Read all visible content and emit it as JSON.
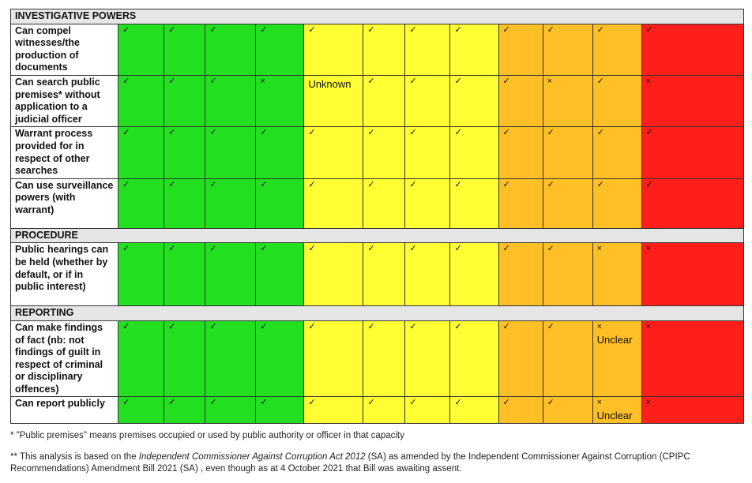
{
  "sections": [
    {
      "title": "INVESTIGATIVE POWERS",
      "rows": [
        {
          "label": "Can compel witnesses/the production of documents",
          "cells": [
            {
              "mark": "✓"
            },
            {
              "mark": "✓"
            },
            {
              "mark": "✓"
            },
            {
              "mark": "✓"
            },
            {
              "mark": "✓"
            },
            {
              "mark": "✓"
            },
            {
              "mark": "✓"
            },
            {
              "mark": "✓"
            },
            {
              "mark": "✓"
            },
            {
              "mark": "✓"
            },
            {
              "mark": "✓"
            },
            {
              "mark": "✓"
            }
          ]
        },
        {
          "label": "Can search public premises* without application to a judicial officer",
          "cells": [
            {
              "mark": "✓"
            },
            {
              "mark": "✓"
            },
            {
              "mark": "✓"
            },
            {
              "mark": "×"
            },
            {
              "mark": "",
              "note": "Unknown"
            },
            {
              "mark": "✓"
            },
            {
              "mark": "✓"
            },
            {
              "mark": "✓"
            },
            {
              "mark": "✓"
            },
            {
              "mark": "×"
            },
            {
              "mark": "✓"
            },
            {
              "mark": "×"
            }
          ]
        },
        {
          "label": "Warrant process provided for in respect of other searches",
          "cells": [
            {
              "mark": "✓"
            },
            {
              "mark": "✓"
            },
            {
              "mark": "✓"
            },
            {
              "mark": "✓"
            },
            {
              "mark": "✓"
            },
            {
              "mark": "✓"
            },
            {
              "mark": "✓"
            },
            {
              "mark": "✓"
            },
            {
              "mark": "✓"
            },
            {
              "mark": "✓"
            },
            {
              "mark": "✓"
            },
            {
              "mark": "✓"
            }
          ]
        },
        {
          "label": "Can use surveillance powers (with warrant)",
          "cells": [
            {
              "mark": "✓"
            },
            {
              "mark": "✓"
            },
            {
              "mark": "✓"
            },
            {
              "mark": "✓"
            },
            {
              "mark": "✓"
            },
            {
              "mark": "✓"
            },
            {
              "mark": "✓"
            },
            {
              "mark": "✓"
            },
            {
              "mark": "✓"
            },
            {
              "mark": "✓"
            },
            {
              "mark": "✓"
            },
            {
              "mark": "✓"
            }
          ]
        }
      ]
    },
    {
      "title": "PROCEDURE",
      "rows": [
        {
          "label": "Public hearings can be held (whether by default, or if in public interest)",
          "cells": [
            {
              "mark": "✓"
            },
            {
              "mark": "✓"
            },
            {
              "mark": "✓"
            },
            {
              "mark": "✓"
            },
            {
              "mark": "✓"
            },
            {
              "mark": "✓"
            },
            {
              "mark": "✓"
            },
            {
              "mark": "✓"
            },
            {
              "mark": "✓"
            },
            {
              "mark": "✓"
            },
            {
              "mark": "×"
            },
            {
              "mark": "×"
            }
          ]
        }
      ]
    },
    {
      "title": "REPORTING",
      "rows": [
        {
          "label": "Can make findings of fact (nb: not findings of guilt in respect of criminal or disciplinary offences)",
          "cells": [
            {
              "mark": "✓"
            },
            {
              "mark": "✓"
            },
            {
              "mark": "✓"
            },
            {
              "mark": "✓"
            },
            {
              "mark": "✓"
            },
            {
              "mark": "✓"
            },
            {
              "mark": "✓"
            },
            {
              "mark": "✓"
            },
            {
              "mark": "✓"
            },
            {
              "mark": "✓"
            },
            {
              "mark": "×",
              "note": "Unclear"
            },
            {
              "mark": "×"
            }
          ]
        },
        {
          "label": "Can report publicly",
          "cells": [
            {
              "mark": "✓"
            },
            {
              "mark": "✓"
            },
            {
              "mark": "✓"
            },
            {
              "mark": "✓"
            },
            {
              "mark": "✓"
            },
            {
              "mark": "✓"
            },
            {
              "mark": "✓"
            },
            {
              "mark": "✓"
            },
            {
              "mark": "✓"
            },
            {
              "mark": "✓"
            },
            {
              "mark": "×",
              "note": "Unclear"
            },
            {
              "mark": "×"
            }
          ]
        }
      ]
    }
  ],
  "column_colors": [
    "#22e020",
    "#22e020",
    "#22e020",
    "#22e020",
    "#ffff33",
    "#ffff33",
    "#ffff33",
    "#ffff33",
    "#ffc027",
    "#ffc027",
    "#ffc027",
    "#ff1f1a"
  ],
  "footnotes": {
    "fn1": "* \"Public premises\" means premises occupied or used by public authority or officer in that capacity",
    "fn2_pre": "** This analysis is based on the ",
    "fn2_act": "Independent Commissioner Against Corruption Act 2012",
    "fn2_post": " (SA) as amended by the Independent Commissioner Against Corruption (CPIPC Recommendations) Amendment Bill 2021 (SA) , even though as at 4 October 2021 that Bill  was awaiting assent."
  }
}
